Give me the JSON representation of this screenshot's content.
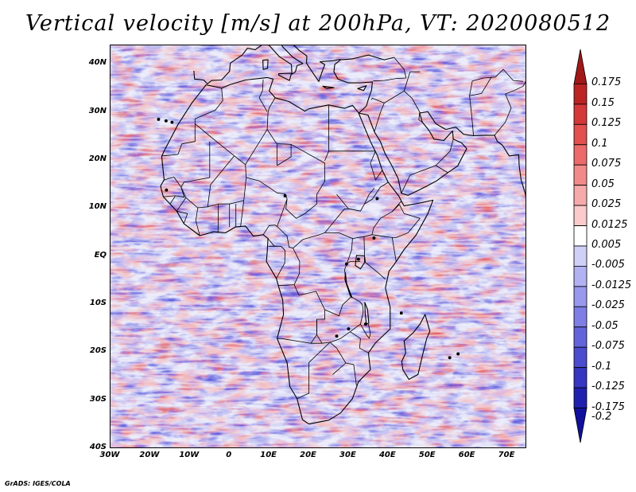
{
  "title": "Vertical velocity [m/s] at 200hPa, VT: 2020080512",
  "credit": "GrADS: IGES/COLA",
  "map": {
    "lat_labels": [
      "40N",
      "30N",
      "20N",
      "10N",
      "EQ",
      "10S",
      "20S",
      "30S",
      "40S"
    ],
    "lon_labels": [
      "30W",
      "20W",
      "10W",
      "0",
      "10E",
      "20E",
      "30E",
      "40E",
      "50E",
      "60E",
      "70E"
    ],
    "lon_range": [
      -30,
      75
    ],
    "lat_range": [
      -40,
      44
    ]
  },
  "colorbar": {
    "labels": [
      "0.175",
      "0.15",
      "0.125",
      "0.1",
      "0.075",
      "0.05",
      "0.025",
      "0.0125",
      "0.005",
      "-0.005",
      "-0.0125",
      "-0.025",
      "-0.05",
      "-0.075",
      "-0.1",
      "-0.125",
      "-0.175",
      "-0.2"
    ],
    "colors": [
      "#a01818",
      "#bc2424",
      "#d43838",
      "#e25050",
      "#ec6a6a",
      "#f28a8a",
      "#f7aaaa",
      "#fbcaca",
      "#ffffff",
      "#cfcff7",
      "#b2b2f2",
      "#9898ec",
      "#7e7ee4",
      "#6464da",
      "#4c4cce",
      "#3636c0",
      "#2020ae",
      "#10109c"
    ]
  }
}
